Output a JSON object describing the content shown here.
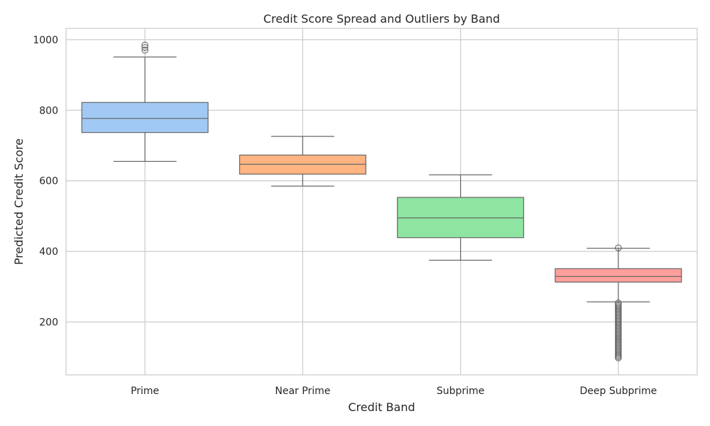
{
  "chart_data": {
    "type": "box",
    "title": "Credit Score Spread and Outliers by Band",
    "xlabel": "Credit Band",
    "ylabel": "Predicted Credit Score",
    "ylim": [
      50,
      1032
    ],
    "yticks": [
      200,
      400,
      600,
      800,
      1000
    ],
    "grid": true,
    "categories": [
      "Prime",
      "Near Prime",
      "Subprime",
      "Deep Subprime"
    ],
    "colors": [
      "#a1c9f4",
      "#ffb482",
      "#8de5a1",
      "#ff9f9b"
    ],
    "box_stats": [
      {
        "whislo": 655,
        "q1": 737,
        "med": 777,
        "q3": 822,
        "whishi": 951
      },
      {
        "whislo": 585,
        "q1": 619,
        "med": 647,
        "q3": 673,
        "whishi": 726
      },
      {
        "whislo": 375,
        "q1": 439,
        "med": 495,
        "q3": 553,
        "whishi": 617
      },
      {
        "whislo": 257,
        "q1": 313,
        "med": 329,
        "q3": 351,
        "whishi": 409
      }
    ],
    "outliers": [
      [
        985,
        978,
        970
      ],
      [],
      [],
      [
        410,
        254,
        250,
        246,
        242,
        238,
        234,
        230,
        226,
        222,
        218,
        214,
        210,
        206,
        202,
        198,
        194,
        190,
        186,
        182,
        178,
        174,
        170,
        166,
        162,
        158,
        154,
        150,
        146,
        142,
        138,
        134,
        130,
        126,
        122,
        118,
        114,
        110,
        106,
        102,
        98
      ]
    ]
  }
}
